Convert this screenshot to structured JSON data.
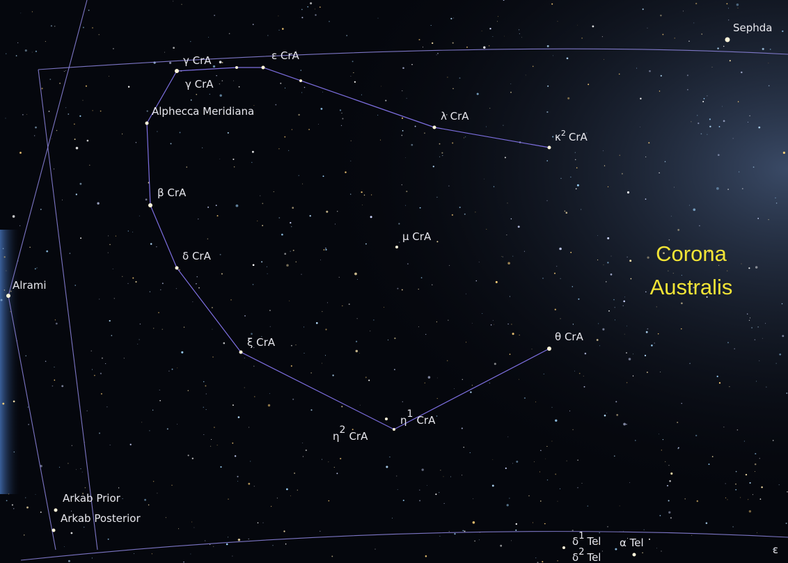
{
  "labels": {
    "sephda": "Sephda",
    "gamma_top": "γ CrA",
    "gamma": "γ CrA",
    "epsilon": "ε CrA",
    "alphecca": "Alphecca Meridiana",
    "lambda": "λ CrA",
    "kappa2": {
      "name": "κ",
      "sup": "2",
      "tail": "CrA"
    },
    "beta": "β CrA",
    "mu": "μ CrA",
    "delta": "δ CrA",
    "alrami": "Alrami",
    "xi": "ξ CrA",
    "theta": "θ CrA",
    "eta1": {
      "name": "η",
      "sup": "1",
      "tail": "CrA"
    },
    "eta2": {
      "name": "η",
      "sup": "2",
      "tail": "CrA"
    },
    "arkab_prior": "Arkab Prior",
    "arkab_posterior": "Arkab Posterior",
    "delta1_tel": {
      "name": "δ",
      "sup": "1",
      "tail": "Tel"
    },
    "alpha_tel": "α Tel",
    "delta2_tel": {
      "name": "δ",
      "sup": "2",
      "tail": "Tel"
    },
    "epsilon1_tel": "ε"
  },
  "constellation": {
    "line1": "Corona",
    "line2": "Australis"
  }
}
